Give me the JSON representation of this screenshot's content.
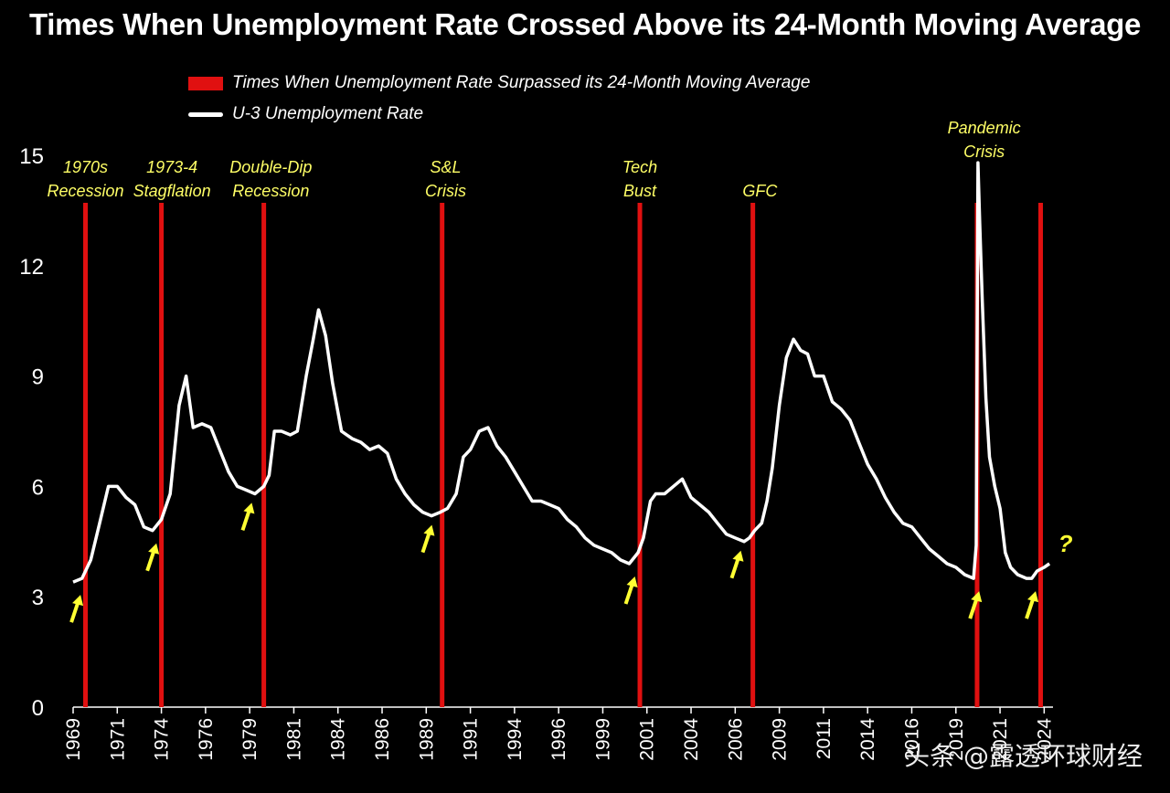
{
  "title": "Times When Unemployment Rate Crossed Above its 24-Month Moving Average",
  "legend": [
    {
      "label": "Times When Unemployment Rate Surpassed its 24-Month Moving Average",
      "kind": "bar",
      "color": "#e01010"
    },
    {
      "label": "U-3 Unemployment Rate",
      "kind": "line",
      "color": "#ffffff"
    }
  ],
  "watermark": "头条 @露透环球财经",
  "chart_data": {
    "type": "line",
    "ylim": [
      0,
      15
    ],
    "yticks": [
      0,
      3,
      6,
      9,
      12,
      15
    ],
    "xlim": [
      1969,
      2024.5
    ],
    "xticks": [
      "1969",
      "1971",
      "1974",
      "1976",
      "1979",
      "1981",
      "1984",
      "1986",
      "1989",
      "1991",
      "1994",
      "1996",
      "1999",
      "2001",
      "2004",
      "2006",
      "2009",
      "2011",
      "2014",
      "2016",
      "2019",
      "2021",
      "2024"
    ],
    "xtick_values": [
      1969,
      1971.5,
      1974,
      1976.5,
      1979,
      1981.5,
      1984,
      1986.5,
      1989,
      1991.5,
      1994,
      1996.5,
      1999,
      2001.5,
      2004,
      2006.5,
      2009,
      2011.5,
      2014,
      2016.5,
      2019,
      2021.5,
      2024
    ],
    "series": [
      {
        "name": "U-3 Unemployment Rate",
        "color": "#ffffff",
        "x": [
          1969.0,
          1969.5,
          1970.0,
          1970.5,
          1971.0,
          1971.5,
          1972.0,
          1972.5,
          1973.0,
          1973.5,
          1974.0,
          1974.5,
          1975.0,
          1975.4,
          1975.8,
          1976.3,
          1976.8,
          1977.3,
          1977.8,
          1978.3,
          1978.8,
          1979.3,
          1979.8,
          1980.1,
          1980.4,
          1980.8,
          1981.3,
          1981.7,
          1982.2,
          1982.6,
          1982.9,
          1983.3,
          1983.7,
          1984.2,
          1984.8,
          1985.3,
          1985.8,
          1986.3,
          1986.8,
          1987.3,
          1987.8,
          1988.3,
          1988.8,
          1989.3,
          1989.8,
          1990.2,
          1990.7,
          1991.1,
          1991.5,
          1992.0,
          1992.5,
          1993.0,
          1993.5,
          1994.0,
          1994.5,
          1995.0,
          1995.5,
          1996.0,
          1996.5,
          1997.0,
          1997.5,
          1998.0,
          1998.5,
          1999.0,
          1999.5,
          2000.0,
          2000.5,
          2001.0,
          2001.3,
          2001.7,
          2002.0,
          2002.5,
          2003.0,
          2003.5,
          2004.0,
          2004.5,
          2005.0,
          2005.5,
          2006.0,
          2006.5,
          2007.0,
          2007.3,
          2007.6,
          2008.0,
          2008.3,
          2008.6,
          2009.0,
          2009.4,
          2009.8,
          2010.2,
          2010.6,
          2011.0,
          2011.5,
          2012.0,
          2012.5,
          2013.0,
          2013.5,
          2014.0,
          2014.5,
          2015.0,
          2015.5,
          2016.0,
          2016.5,
          2017.0,
          2017.5,
          2018.0,
          2018.5,
          2019.0,
          2019.5,
          2020.0,
          2020.15,
          2020.25,
          2020.35,
          2020.5,
          2020.7,
          2020.9,
          2021.2,
          2021.5,
          2021.8,
          2022.1,
          2022.5,
          2023.0,
          2023.3,
          2023.6,
          2024.0,
          2024.3
        ],
        "y": [
          3.4,
          3.5,
          4.0,
          5.0,
          6.0,
          6.0,
          5.7,
          5.5,
          4.9,
          4.8,
          5.1,
          5.8,
          8.2,
          9.0,
          7.6,
          7.7,
          7.6,
          7.0,
          6.4,
          6.0,
          5.9,
          5.8,
          6.0,
          6.3,
          7.5,
          7.5,
          7.4,
          7.5,
          9.0,
          10.0,
          10.8,
          10.1,
          8.8,
          7.5,
          7.3,
          7.2,
          7.0,
          7.1,
          6.9,
          6.2,
          5.8,
          5.5,
          5.3,
          5.2,
          5.3,
          5.4,
          5.8,
          6.8,
          7.0,
          7.5,
          7.6,
          7.1,
          6.8,
          6.4,
          6.0,
          5.6,
          5.6,
          5.5,
          5.4,
          5.1,
          4.9,
          4.6,
          4.4,
          4.3,
          4.2,
          4.0,
          3.9,
          4.2,
          4.6,
          5.6,
          5.8,
          5.8,
          6.0,
          6.2,
          5.7,
          5.5,
          5.3,
          5.0,
          4.7,
          4.6,
          4.5,
          4.6,
          4.8,
          5.0,
          5.6,
          6.5,
          8.2,
          9.5,
          10.0,
          9.7,
          9.6,
          9.0,
          9.0,
          8.3,
          8.1,
          7.8,
          7.2,
          6.6,
          6.2,
          5.7,
          5.3,
          5.0,
          4.9,
          4.6,
          4.3,
          4.1,
          3.9,
          3.8,
          3.6,
          3.5,
          4.4,
          14.8,
          13.2,
          11.0,
          8.4,
          6.8,
          6.0,
          5.4,
          4.2,
          3.8,
          3.6,
          3.5,
          3.5,
          3.7,
          3.8,
          3.9
        ]
      }
    ],
    "crossovers": [
      1969.7,
      1974.0,
      1979.8,
      1989.9,
      2001.1,
      2007.5,
      2020.2,
      2023.8
    ],
    "annotations": [
      {
        "text": [
          "1970s",
          "Recession"
        ],
        "x": 1969.7
      },
      {
        "text": [
          "1973-4",
          "Stagflation"
        ],
        "x": 1974.6
      },
      {
        "text": [
          "Double-Dip",
          "Recession"
        ],
        "x": 1980.2
      },
      {
        "text": [
          "S&L",
          "Crisis"
        ],
        "x": 1990.1
      },
      {
        "text": [
          "Tech",
          "Bust"
        ],
        "x": 2001.1
      },
      {
        "text": [
          "GFC"
        ],
        "x": 2007.9
      },
      {
        "text": [
          "Pandemic",
          "Crisis"
        ],
        "x": 2020.6
      },
      {
        "text": [
          "?"
        ],
        "x": 2025.2
      }
    ],
    "arrows_at": [
      1968.9,
      1973.2,
      1978.6,
      1988.8,
      2000.3,
      2006.3,
      2019.8,
      2023.0
    ]
  }
}
